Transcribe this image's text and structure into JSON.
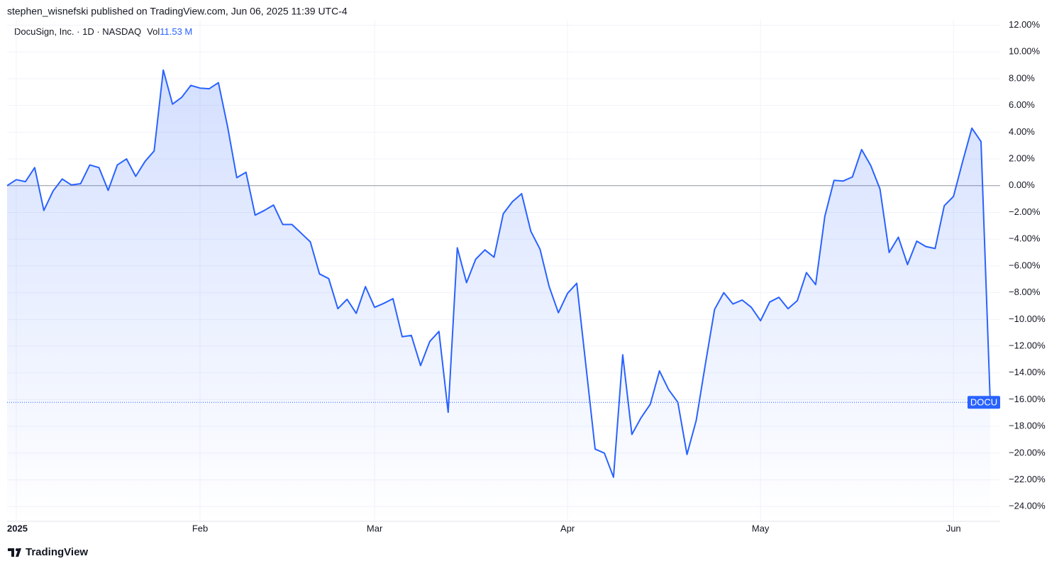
{
  "header": {
    "text": "stephen_wisnefski published on TradingView.com, Jun 06, 2025 11:39 UTC-4"
  },
  "chart_data": {
    "type": "line",
    "title": "DocuSign, Inc. · 1D · NASDAQ",
    "volume_label": "Vol",
    "volume": "11.53 M",
    "categories": [
      null,
      "2025",
      null,
      null,
      null,
      null,
      null,
      null,
      null,
      null,
      null,
      null,
      null,
      null,
      null,
      null,
      null,
      null,
      null,
      null,
      null,
      "Feb",
      null,
      null,
      null,
      null,
      null,
      null,
      null,
      null,
      null,
      null,
      null,
      null,
      null,
      null,
      null,
      null,
      null,
      null,
      "Mar",
      null,
      null,
      null,
      null,
      null,
      null,
      null,
      null,
      null,
      null,
      null,
      null,
      null,
      null,
      null,
      null,
      null,
      null,
      null,
      null,
      "Apr",
      null,
      null,
      null,
      null,
      null,
      null,
      null,
      null,
      null,
      null,
      null,
      null,
      null,
      null,
      null,
      null,
      null,
      null,
      null,
      null,
      "May",
      null,
      null,
      null,
      null,
      null,
      null,
      null,
      null,
      null,
      null,
      null,
      null,
      null,
      null,
      null,
      null,
      null,
      null,
      null,
      null,
      "Jun",
      null,
      null,
      null,
      null
    ],
    "series": [
      {
        "name": "DOCU",
        "color": "#2962ff",
        "values": [
          0.0,
          0.45,
          0.3,
          1.35,
          -1.85,
          -0.4,
          0.5,
          0.05,
          0.15,
          1.55,
          1.35,
          -0.35,
          1.55,
          2.0,
          0.7,
          1.8,
          2.6,
          8.65,
          6.1,
          6.6,
          7.5,
          7.3,
          7.25,
          7.7,
          4.4,
          0.6,
          1.0,
          -2.2,
          -1.85,
          -1.45,
          -2.9,
          -2.9,
          -3.55,
          -4.2,
          -6.6,
          -6.95,
          -9.2,
          -8.5,
          -9.55,
          -7.55,
          -9.1,
          -8.8,
          -8.45,
          -11.3,
          -11.2,
          -13.45,
          -11.65,
          -10.9,
          -16.95,
          -4.65,
          -7.25,
          -5.5,
          -4.8,
          -5.35,
          -2.1,
          -1.2,
          -0.6,
          -3.4,
          -4.75,
          -7.55,
          -9.5,
          -8.05,
          -7.3,
          -13.5,
          -19.7,
          -20.0,
          -21.8,
          -12.65,
          -18.6,
          -17.35,
          -16.35,
          -13.85,
          -15.25,
          -16.2,
          -20.1,
          -17.55,
          -13.35,
          -9.25,
          -8.0,
          -8.85,
          -8.55,
          -9.1,
          -10.1,
          -8.7,
          -8.35,
          -9.2,
          -8.6,
          -6.5,
          -7.4,
          -2.3,
          0.4,
          0.35,
          0.65,
          2.7,
          1.5,
          -0.25,
          -5.0,
          -3.85,
          -5.9,
          -4.15,
          -4.55,
          -4.7,
          -1.5,
          -0.8,
          1.8,
          4.3,
          3.3,
          -16.2
        ]
      }
    ],
    "ylim": [
      -25.1,
      12.4
    ],
    "yticks": [
      {
        "value": 12,
        "label": "12.00%"
      },
      {
        "value": 10,
        "label": "10.00%"
      },
      {
        "value": 8,
        "label": "8.00%"
      },
      {
        "value": 6,
        "label": "6.00%"
      },
      {
        "value": 4,
        "label": "4.00%"
      },
      {
        "value": 2,
        "label": "2.00%"
      },
      {
        "value": 0,
        "label": "0.00%"
      },
      {
        "value": -2,
        "label": "−2.00%"
      },
      {
        "value": -4,
        "label": "−4.00%"
      },
      {
        "value": -6,
        "label": "−6.00%"
      },
      {
        "value": -8,
        "label": "−8.00%"
      },
      {
        "value": -10,
        "label": "−10.00%"
      },
      {
        "value": -12,
        "label": "−12.00%"
      },
      {
        "value": -14,
        "label": "−14.00%"
      },
      {
        "value": -16,
        "label": "−16.00%"
      },
      {
        "value": -18,
        "label": "−18.00%"
      },
      {
        "value": -20,
        "label": "−20.00%"
      },
      {
        "value": -22,
        "label": "−22.00%"
      },
      {
        "value": -24,
        "label": "−24.00%"
      }
    ],
    "baseline": 0,
    "grid": true
  },
  "footer": {
    "brand": "TradingView"
  }
}
